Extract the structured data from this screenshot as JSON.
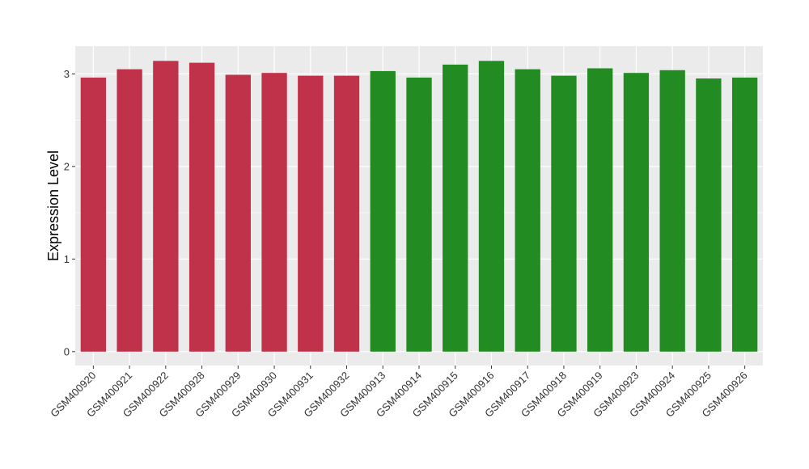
{
  "chart_data": {
    "type": "bar",
    "title": "",
    "xlabel": "",
    "ylabel": "Expression Level",
    "ylim": [
      -0.15,
      3.3
    ],
    "yticks": [
      0,
      1,
      2,
      3
    ],
    "grid": true,
    "legend": "none",
    "categories": [
      "GSM400920",
      "GSM400921",
      "GSM400922",
      "GSM400928",
      "GSM400929",
      "GSM400930",
      "GSM400931",
      "GSM400932",
      "GSM400913",
      "GSM400914",
      "GSM400915",
      "GSM400916",
      "GSM400917",
      "GSM400918",
      "GSM400919",
      "GSM400923",
      "GSM400924",
      "GSM400925",
      "GSM400926"
    ],
    "values": [
      2.96,
      3.05,
      3.14,
      3.12,
      2.99,
      3.01,
      2.98,
      2.98,
      3.03,
      2.96,
      3.1,
      3.14,
      3.05,
      2.98,
      3.06,
      3.01,
      3.04,
      2.95,
      2.96
    ],
    "bar_colors": [
      "#C0314A",
      "#C0314A",
      "#C0314A",
      "#C0314A",
      "#C0314A",
      "#C0314A",
      "#C0314A",
      "#C0314A",
      "#228B22",
      "#228B22",
      "#228B22",
      "#228B22",
      "#228B22",
      "#228B22",
      "#228B22",
      "#228B22",
      "#228B22",
      "#228B22",
      "#228B22"
    ],
    "panel_background": "#EBEBEB",
    "gridline_color": "#FFFFFF"
  }
}
